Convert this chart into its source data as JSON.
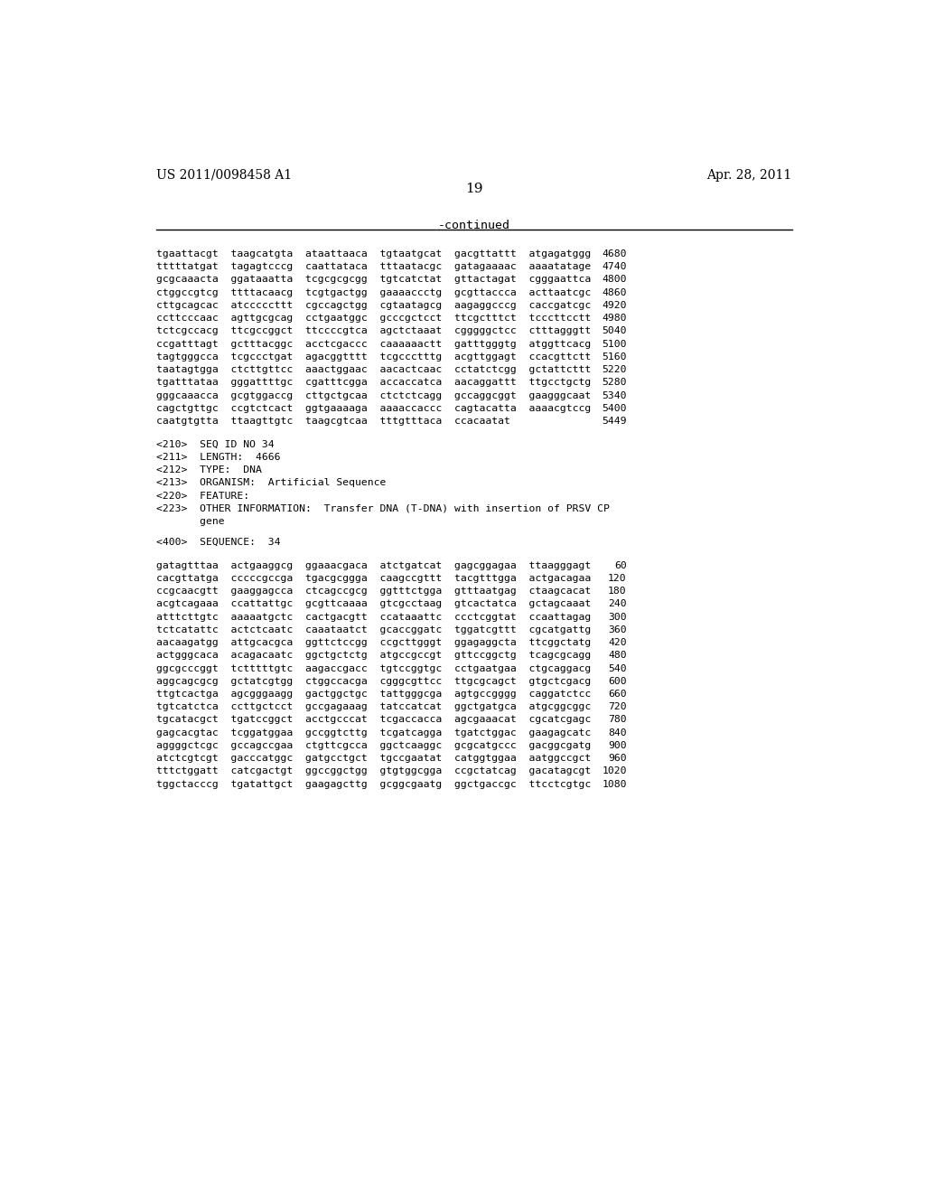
{
  "background_color": "#ffffff",
  "header_left": "US 2011/0098458 A1",
  "header_right": "Apr. 28, 2011",
  "page_number": "19",
  "continued_label": "-continued",
  "seq_lines_top": [
    [
      "tgaattacgt  taagcatgta  ataattaaca  tgtaatgcat  gacgttattt  atgagatggg",
      "4680"
    ],
    [
      "tttttatgat  tagagtcccg  caattataca  tttaatacgc  gatagaaaac  aaaatatage",
      "4740"
    ],
    [
      "gcgcaaacta  ggataaatta  tcgcgcgcgg  tgtcatctat  gttactagat  cgggaattca",
      "4800"
    ],
    [
      "ctggccgtcg  ttttacaacg  tcgtgactgg  gaaaaccctg  gcgttaccca  acttaatcgc",
      "4860"
    ],
    [
      "cttgcagcac  atcccccttt  cgccagctgg  cgtaatagcg  aagaggcccg  caccgatcgc",
      "4920"
    ],
    [
      "ccttcccaac  agttgcgcag  cctgaatggc  gcccgctcct  ttcgctttct  tcccttcctt",
      "4980"
    ],
    [
      "tctcgccacg  ttcgccggct  ttccccgtca  agctctaaat  cgggggctcc  ctttagggtt",
      "5040"
    ],
    [
      "ccgatttagt  gctttacggc  acctcgaccc  caaaaaactt  gatttgggtg  atggttcacg",
      "5100"
    ],
    [
      "tagtgggcca  tcgccctgat  agacggtttt  tcgccctttg  acgttggagt  ccacgttctt",
      "5160"
    ],
    [
      "taatagtgga  ctcttgttcc  aaactggaac  aacactcaac  cctatctcgg  gctattcttt",
      "5220"
    ],
    [
      "tgatttataa  gggattttgc  cgatttcgga  accaccatca  aacaggattt  ttgcctgctg",
      "5280"
    ],
    [
      "gggcaaacca  gcgtggaccg  cttgctgcaa  ctctctcagg  gccaggcggt  gaagggcaat",
      "5340"
    ],
    [
      "cagctgttgc  ccgtctcact  ggtgaaaaga  aaaaccaccc  cagtacatta  aaaacgtccg",
      "5400"
    ],
    [
      "caatgtgtta  ttaagttgtc  taagcgtcaa  tttgtttaca  ccacaatat",
      "5449"
    ]
  ],
  "meta_lines": [
    "<210>  SEQ ID NO 34",
    "<211>  LENGTH:  4666",
    "<212>  TYPE:  DNA",
    "<213>  ORGANISM:  Artificial Sequence",
    "<220>  FEATURE:",
    "<223>  OTHER INFORMATION:  Transfer DNA (T-DNA) with insertion of PRSV CP",
    "       gene",
    "",
    "<400>  SEQUENCE:  34"
  ],
  "seq_lines_bottom": [
    [
      "gatagtttaa  actgaaggcg  ggaaacgaca  atctgatcat  gagcggagaa  ttaagggagt",
      "60"
    ],
    [
      "cacgttatga  cccccgccga  tgacgcggga  caagccgttt  tacgtttgga  actgacagaa",
      "120"
    ],
    [
      "ccgcaacgtt  gaaggagcca  ctcagccgcg  ggtttctgga  gtttaatgag  ctaagcacat",
      "180"
    ],
    [
      "acgtcagaaa  ccattattgc  gcgttcaaaa  gtcgcctaag  gtcactatca  gctagcaaat",
      "240"
    ],
    [
      "atttcttgtc  aaaaatgctc  cactgacgtt  ccataaattc  ccctcggtat  ccaattagag",
      "300"
    ],
    [
      "tctcatattc  actctcaatc  caaataatct  gcaccggatc  tggatcgttt  cgcatgattg",
      "360"
    ],
    [
      "aacaagatgg  attgcacgca  ggttctccgg  ccgcttgggt  ggagaggcta  ttcggctatg",
      "420"
    ],
    [
      "actgggcaca  acagacaatc  ggctgctctg  atgccgccgt  gttccggctg  tcagcgcagg",
      "480"
    ],
    [
      "ggcgcccggt  tctttttgtc  aagaccgacc  tgtccggtgc  cctgaatgaa  ctgcaggacg",
      "540"
    ],
    [
      "aggcagcgcg  gctatcgtgg  ctggccacga  cgggcgttcc  ttgcgcagct  gtgctcgacg",
      "600"
    ],
    [
      "ttgtcactga  agcgggaagg  gactggctgc  tattgggcga  agtgccgggg  caggatctcc",
      "660"
    ],
    [
      "tgtcatctca  ccttgctcct  gccgagaaag  tatccatcat  ggctgatgca  atgcggcggc",
      "720"
    ],
    [
      "tgcatacgct  tgatccggct  acctgcccat  tcgaccacca  agcgaaacat  cgcatcgagc",
      "780"
    ],
    [
      "gagcacgtac  tcggatggaa  gccggtcttg  tcgatcagga  tgatctggac  gaagagcatc",
      "840"
    ],
    [
      "aggggctcgc  gccagccgaa  ctgttcgcca  ggctcaaggc  gcgcatgccc  gacggcgatg",
      "900"
    ],
    [
      "atctcgtcgt  gacccatggc  gatgcctgct  tgccgaatat  catggtggaa  aatggccgct",
      "960"
    ],
    [
      "tttctggatt  catcgactgt  ggccggctgg  gtgtggcgga  ccgctatcag  gacatagcgt",
      "1020"
    ],
    [
      "tggctacccg  tgatattgct  gaagagcttg  gcggcgaatg  ggctgaccgc  ttcctcgtgc",
      "1080"
    ]
  ]
}
